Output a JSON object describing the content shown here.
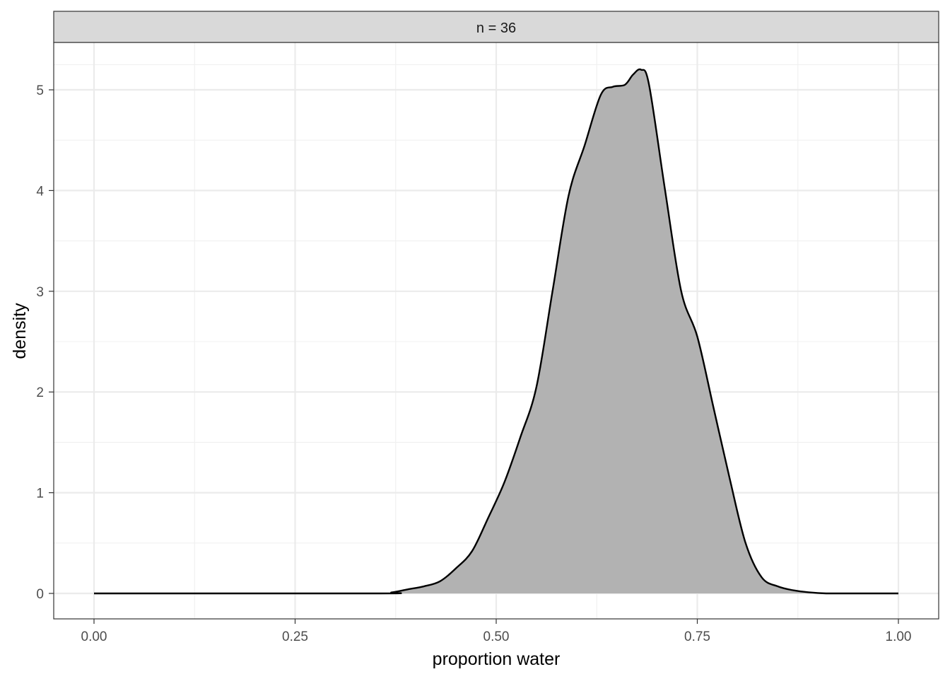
{
  "chart_data": {
    "type": "area",
    "facet_label": "n = 36",
    "xlabel": "proportion water",
    "ylabel": "density",
    "xlim": [
      0,
      1
    ],
    "ylim": [
      0,
      5.45
    ],
    "x_ticks": [
      0.0,
      0.25,
      0.5,
      0.75,
      1.0
    ],
    "x_tick_labels": [
      "0.00",
      "0.25",
      "0.50",
      "0.75",
      "1.00"
    ],
    "y_ticks": [
      0,
      1,
      2,
      3,
      4,
      5
    ],
    "y_tick_labels": [
      "0",
      "1",
      "2",
      "3",
      "4",
      "5"
    ],
    "grid": true,
    "fill_color": "#b2b2b2",
    "line_color": "#000000",
    "x": [
      0.0,
      0.35,
      0.37,
      0.39,
      0.41,
      0.43,
      0.45,
      0.47,
      0.49,
      0.51,
      0.53,
      0.55,
      0.57,
      0.59,
      0.61,
      0.63,
      0.645,
      0.66,
      0.67,
      0.68,
      0.69,
      0.71,
      0.73,
      0.75,
      0.77,
      0.79,
      0.81,
      0.83,
      0.85,
      0.87,
      0.89,
      0.91,
      0.93,
      1.0
    ],
    "y": [
      0.0,
      0.0,
      0.01,
      0.04,
      0.07,
      0.12,
      0.25,
      0.42,
      0.75,
      1.1,
      1.55,
      2.05,
      3.0,
      3.95,
      4.45,
      4.95,
      5.03,
      5.05,
      5.15,
      5.2,
      5.05,
      4.0,
      3.0,
      2.55,
      1.85,
      1.15,
      0.5,
      0.16,
      0.07,
      0.03,
      0.01,
      0.0,
      0.0,
      0.0
    ]
  }
}
